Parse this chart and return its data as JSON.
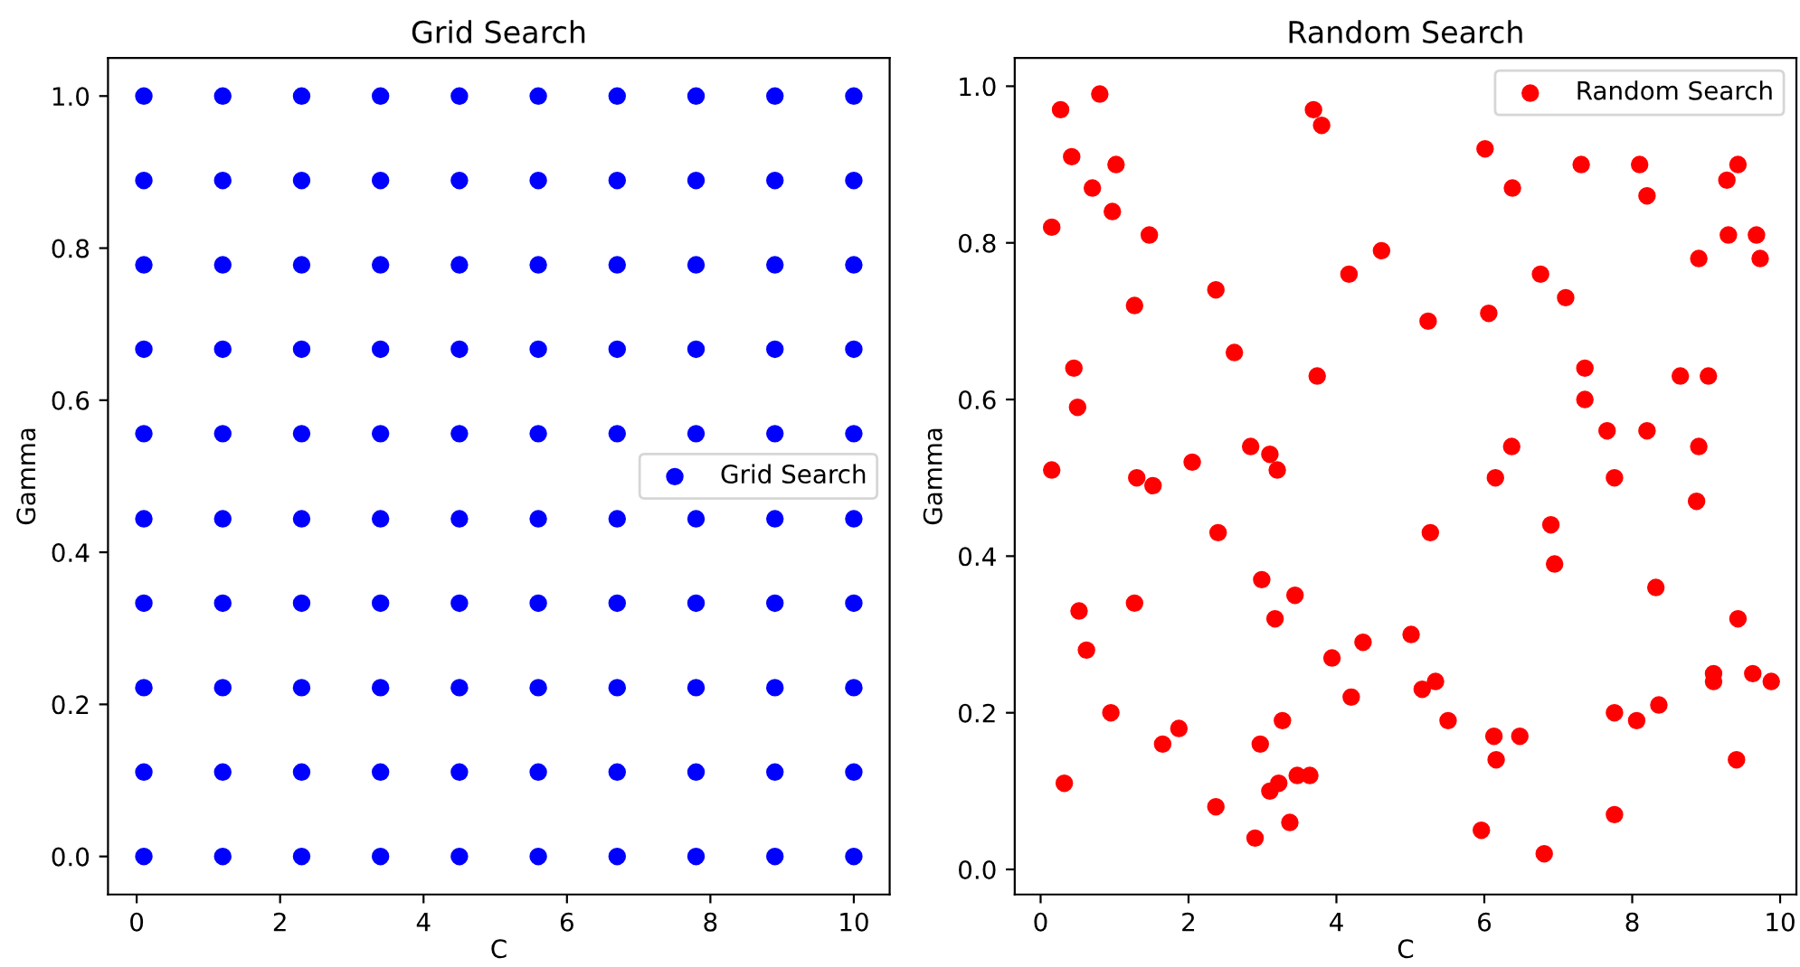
{
  "chart_data": [
    {
      "type": "scatter",
      "title": "Grid Search",
      "xlabel": "C",
      "ylabel": "Gamma",
      "xlim": [
        -0.4,
        10.5
      ],
      "ylim": [
        -0.05,
        1.05
      ],
      "xticks": [
        0,
        2,
        4,
        6,
        8,
        10
      ],
      "yticks": [
        {
          "value": 0,
          "label": "0.0"
        },
        {
          "value": 0.2,
          "label": "0.2"
        },
        {
          "value": 0.4,
          "label": "0.4"
        },
        {
          "value": 0.6,
          "label": "0.6"
        },
        {
          "value": 0.8,
          "label": "0.8"
        },
        {
          "value": 1,
          "label": "1.0"
        }
      ],
      "legend": "center right",
      "marker": "circle",
      "grid": false,
      "series": [
        {
          "name": "Grid Search",
          "color": "#0000ff",
          "x": [
            0.1,
            1.2,
            2.3,
            3.4,
            4.5,
            5.6,
            6.7,
            7.8,
            8.9,
            10,
            0.1,
            1.2,
            2.3,
            3.4,
            4.5,
            5.6,
            6.7,
            7.8,
            8.9,
            10,
            0.1,
            1.2,
            2.3,
            3.4,
            4.5,
            5.6,
            6.7,
            7.8,
            8.9,
            10,
            0.1,
            1.2,
            2.3,
            3.4,
            4.5,
            5.6,
            6.7,
            7.8,
            8.9,
            10,
            0.1,
            1.2,
            2.3,
            3.4,
            4.5,
            5.6,
            6.7,
            7.8,
            8.9,
            10,
            0.1,
            1.2,
            2.3,
            3.4,
            4.5,
            5.6,
            6.7,
            7.8,
            8.9,
            10,
            0.1,
            1.2,
            2.3,
            3.4,
            4.5,
            5.6,
            6.7,
            7.8,
            8.9,
            10,
            0.1,
            1.2,
            2.3,
            3.4,
            4.5,
            5.6,
            6.7,
            7.8,
            8.9,
            10,
            0.1,
            1.2,
            2.3,
            3.4,
            4.5,
            5.6,
            6.7,
            7.8,
            8.9,
            10,
            0.1,
            1.2,
            2.3,
            3.4,
            4.5,
            5.6,
            6.7,
            7.8,
            8.9,
            10
          ],
          "values": [
            0,
            0,
            0,
            0,
            0,
            0,
            0,
            0,
            0,
            0,
            0.111,
            0.111,
            0.111,
            0.111,
            0.111,
            0.111,
            0.111,
            0.111,
            0.111,
            0.111,
            0.222,
            0.222,
            0.222,
            0.222,
            0.222,
            0.222,
            0.222,
            0.222,
            0.222,
            0.222,
            0.333,
            0.333,
            0.333,
            0.333,
            0.333,
            0.333,
            0.333,
            0.333,
            0.333,
            0.333,
            0.444,
            0.444,
            0.444,
            0.444,
            0.444,
            0.444,
            0.444,
            0.444,
            0.444,
            0.444,
            0.556,
            0.556,
            0.556,
            0.556,
            0.556,
            0.556,
            0.556,
            0.556,
            0.556,
            0.556,
            0.667,
            0.667,
            0.667,
            0.667,
            0.667,
            0.667,
            0.667,
            0.667,
            0.667,
            0.667,
            0.778,
            0.778,
            0.778,
            0.778,
            0.778,
            0.778,
            0.778,
            0.778,
            0.778,
            0.778,
            0.889,
            0.889,
            0.889,
            0.889,
            0.889,
            0.889,
            0.889,
            0.889,
            0.889,
            0.889,
            1,
            1,
            1,
            1,
            1,
            1,
            1,
            1,
            1,
            1
          ]
        }
      ]
    },
    {
      "type": "scatter",
      "title": "Random Search",
      "xlabel": "C",
      "ylabel": "Gamma",
      "xlim": [
        -0.35,
        10.22
      ],
      "ylim": [
        -0.032,
        1.036
      ],
      "xticks": [
        0,
        2,
        4,
        6,
        8,
        10
      ],
      "yticks": [
        {
          "value": 0,
          "label": "0.0"
        },
        {
          "value": 0.2,
          "label": "0.2"
        },
        {
          "value": 0.4,
          "label": "0.4"
        },
        {
          "value": 0.6,
          "label": "0.6"
        },
        {
          "value": 0.8,
          "label": "0.8"
        },
        {
          "value": 1,
          "label": "1.0"
        }
      ],
      "legend": "top right",
      "marker": "circle",
      "grid": false,
      "series": [
        {
          "name": "Random Search",
          "color": "#ff0000",
          "x": [
            0.27,
            0.8,
            0.42,
            0.7,
            1.02,
            0.15,
            0.97,
            1.47,
            1.27,
            0.45,
            0.5,
            0.15,
            1.3,
            1.52,
            2.05,
            2.37,
            2.62,
            2.4,
            2.84,
            3.1,
            3.2,
            3.69,
            3.8,
            3.74,
            4.17,
            4.61,
            5.24,
            6.01,
            6.06,
            6.38,
            6.76,
            7.1,
            7.31,
            7.36,
            7.36,
            7.66,
            7.76,
            8.1,
            8.2,
            8.2,
            8.65,
            9.03,
            8.9,
            8.9,
            8.87,
            9.28,
            9.43,
            9.3,
            9.68,
            9.73,
            6.15,
            6.37,
            6.9,
            6.95,
            8.32,
            5.27,
            5.01,
            4.36,
            3.94,
            4.2,
            3.44,
            2.99,
            1.27,
            0.52,
            0.62,
            0.95,
            1.65,
            1.87,
            2.97,
            3.17,
            3.27,
            3.22,
            3.1,
            3.47,
            3.64,
            3.37,
            2.37,
            2.9,
            0.32,
            5.16,
            5.34,
            5.51,
            6.13,
            6.48,
            6.16,
            5.96,
            6.81,
            7.76,
            7.76,
            8.06,
            8.36,
            9.43,
            9.41,
            9.1,
            9.1,
            9.63,
            9.88
          ],
          "values": [
            0.97,
            0.99,
            0.91,
            0.87,
            0.9,
            0.82,
            0.84,
            0.81,
            0.72,
            0.64,
            0.59,
            0.51,
            0.5,
            0.49,
            0.52,
            0.74,
            0.66,
            0.43,
            0.54,
            0.53,
            0.51,
            0.97,
            0.95,
            0.63,
            0.76,
            0.79,
            0.7,
            0.92,
            0.71,
            0.87,
            0.76,
            0.73,
            0.9,
            0.64,
            0.6,
            0.56,
            0.5,
            0.9,
            0.86,
            0.56,
            0.63,
            0.63,
            0.78,
            0.54,
            0.47,
            0.88,
            0.9,
            0.81,
            0.81,
            0.78,
            0.5,
            0.54,
            0.44,
            0.39,
            0.36,
            0.43,
            0.3,
            0.29,
            0.27,
            0.22,
            0.35,
            0.37,
            0.34,
            0.33,
            0.28,
            0.2,
            0.16,
            0.18,
            0.16,
            0.32,
            0.19,
            0.11,
            0.1,
            0.12,
            0.12,
            0.06,
            0.08,
            0.04,
            0.11,
            0.23,
            0.24,
            0.19,
            0.17,
            0.17,
            0.14,
            0.05,
            0.02,
            0.2,
            0.07,
            0.19,
            0.21,
            0.32,
            0.14,
            0.25,
            0.24,
            0.25,
            0.24
          ]
        }
      ]
    }
  ]
}
